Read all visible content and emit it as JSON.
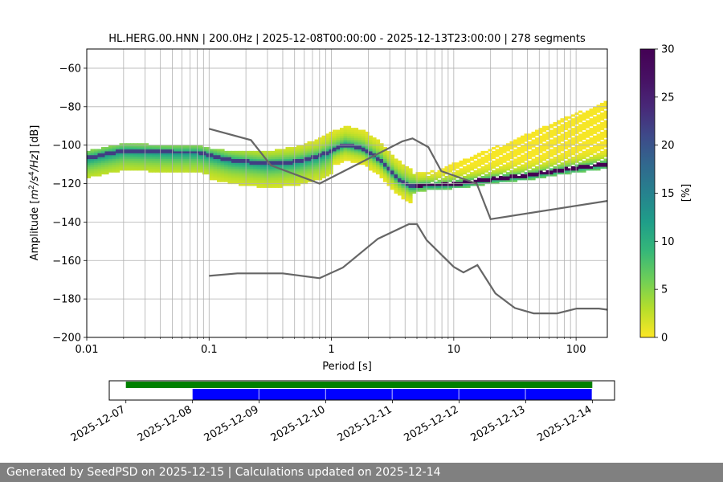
{
  "chart_data": [
    {
      "type": "heatmap",
      "title": "HL.HERG.00.HNN | 200.0Hz | 2025-12-08T00:00:00 - 2025-12-13T23:00:00 | 278 segments",
      "xlabel": "Period [s]",
      "ylabel_parts": [
        "Amplitude [",
        "m",
        "2",
        "/",
        "s",
        "4",
        "/",
        "Hz",
        "] [dB]"
      ],
      "xscale": "log",
      "xlim": [
        0.01,
        180
      ],
      "ylim": [
        -200,
        -50
      ],
      "x_ticks": [
        0.01,
        0.1,
        1,
        10,
        100
      ],
      "x_tick_labels": [
        "0.01",
        "0.1",
        "1",
        "10",
        "100"
      ],
      "y_ticks": [
        -60,
        -80,
        -100,
        -120,
        -140,
        -160,
        -180,
        -200
      ],
      "y_tick_labels": [
        "−60",
        "−80",
        "−100",
        "−120",
        "−140",
        "−160",
        "−180",
        "−200"
      ],
      "grid": true,
      "colorbar": {
        "label": "[%]",
        "colormap": "viridis_r",
        "range": [
          0,
          30
        ],
        "ticks": [
          0,
          5,
          10,
          15,
          20,
          25,
          30
        ],
        "tick_labels": [
          "0",
          "5",
          "10",
          "15",
          "20",
          "25",
          "30"
        ]
      },
      "mode_line": {
        "periods": [
          0.01,
          0.02,
          0.05,
          0.08,
          0.15,
          0.3,
          0.5,
          0.8,
          1.0,
          1.3,
          1.8,
          2.5,
          3.5,
          4.5,
          5.5,
          8,
          12,
          20,
          40,
          80,
          180
        ],
        "db": [
          -107,
          -103,
          -104,
          -104,
          -108,
          -110,
          -109,
          -106,
          -103,
          -100,
          -102,
          -108,
          -118,
          -122,
          -121,
          -121,
          -120,
          -118,
          -116,
          -113,
          -110
        ]
      },
      "series": [
        {
          "type": "line",
          "color": "#666666",
          "x": [
            0.1,
            0.22,
            0.32,
            0.8,
            3.8,
            4.6,
            6.2,
            7.9,
            15.4,
            20,
            180
          ],
          "y": [
            -91.5,
            -97.4,
            -110.5,
            -120,
            -98,
            -96.5,
            -101,
            -113.5,
            -120,
            -138.5,
            -129
          ]
        },
        {
          "type": "line",
          "color": "#666666",
          "x": [
            0.1,
            0.17,
            0.4,
            0.8,
            1.24,
            2.4,
            4.3,
            5.0,
            6.0,
            10,
            12,
            15.6,
            21.9,
            31.6,
            45,
            70,
            101,
            154,
            180
          ],
          "y": [
            -168,
            -166.7,
            -166.7,
            -169.2,
            -163.7,
            -148.7,
            -141.1,
            -141.1,
            -149.4,
            -163.3,
            -166.2,
            -162.4,
            -177.1,
            -184.7,
            -187.5,
            -187.5,
            -185,
            -185,
            -185.6
          ]
        }
      ]
    },
    {
      "type": "bar",
      "orientation": "horizontal",
      "x_tick_labels": [
        "2025-12-07",
        "2025-12-08",
        "2025-12-09",
        "2025-12-10",
        "2025-12-11",
        "2025-12-12",
        "2025-12-13",
        "2025-12-14"
      ],
      "xlim": [
        "2025-12-06T18:00:00",
        "2025-12-14T08:00:00"
      ],
      "series": [
        {
          "color": "#008000",
          "segments": [
            [
              "2025-12-07T00:00:00",
              "2025-12-14T00:00:00"
            ]
          ]
        },
        {
          "color": "#0000ff",
          "segments": [
            [
              "2025-12-08T00:00:00",
              "2025-12-09T00:00:00"
            ],
            [
              "2025-12-09T00:00:00",
              "2025-12-10T00:00:00"
            ],
            [
              "2025-12-10T00:00:00",
              "2025-12-11T00:00:00"
            ],
            [
              "2025-12-11T00:00:00",
              "2025-12-12T00:00:00"
            ],
            [
              "2025-12-12T00:00:00",
              "2025-12-13T00:00:00"
            ],
            [
              "2025-12-13T00:00:00",
              "2025-12-14T00:00:00"
            ]
          ]
        }
      ]
    }
  ],
  "footer": {
    "text": "Generated by SeedPSD on 2025-12-15 | Calculations updated on 2025-12-14"
  }
}
